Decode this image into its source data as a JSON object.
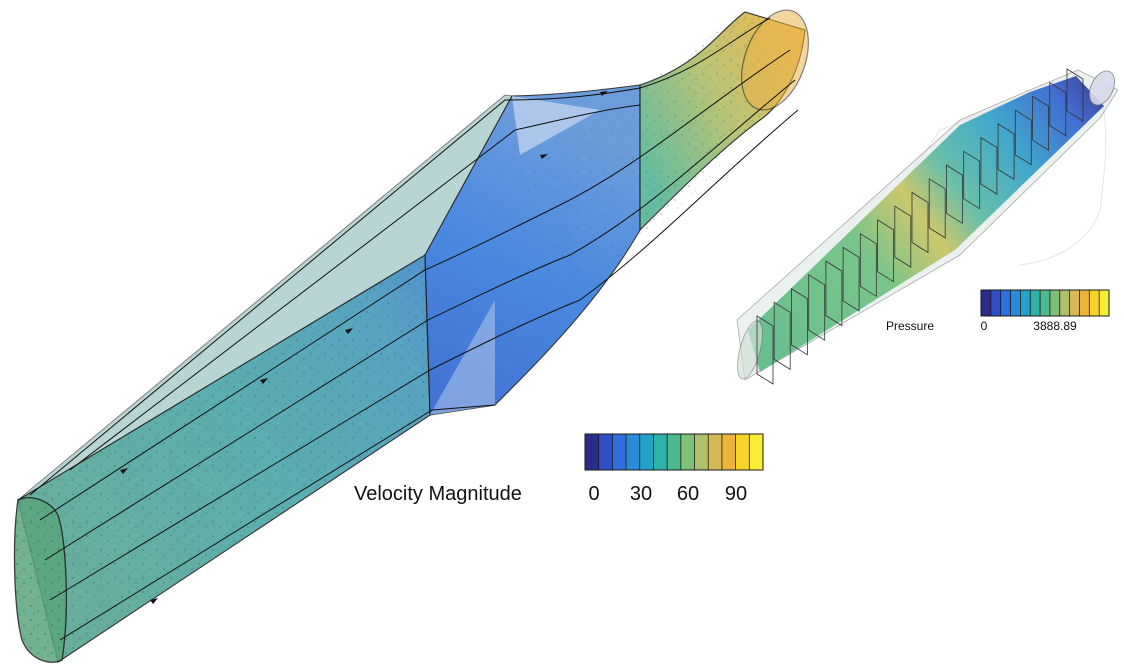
{
  "velocity_legend": {
    "title": "Velocity Magnitude",
    "ticks": [
      "0",
      "30",
      "60",
      "90"
    ],
    "colors": [
      "#2a2c8a",
      "#2f4fc6",
      "#2f6fdc",
      "#2a8ad8",
      "#23a3c7",
      "#2fb3a8",
      "#4db98c",
      "#7fbf7a",
      "#aec06a",
      "#d4b956",
      "#ecb53a",
      "#f8d42a",
      "#f7ee34"
    ]
  },
  "pressure_legend": {
    "title": "Pressure",
    "ticks": [
      "0",
      "3888.89"
    ],
    "colors": [
      "#2a2c8a",
      "#2f4fc6",
      "#2f6fdc",
      "#2a8ad8",
      "#23a3c7",
      "#2fb3a8",
      "#4db98c",
      "#7fbf7a",
      "#aec06a",
      "#d4b956",
      "#ecb53a",
      "#f8d42a",
      "#f7ee34"
    ]
  }
}
